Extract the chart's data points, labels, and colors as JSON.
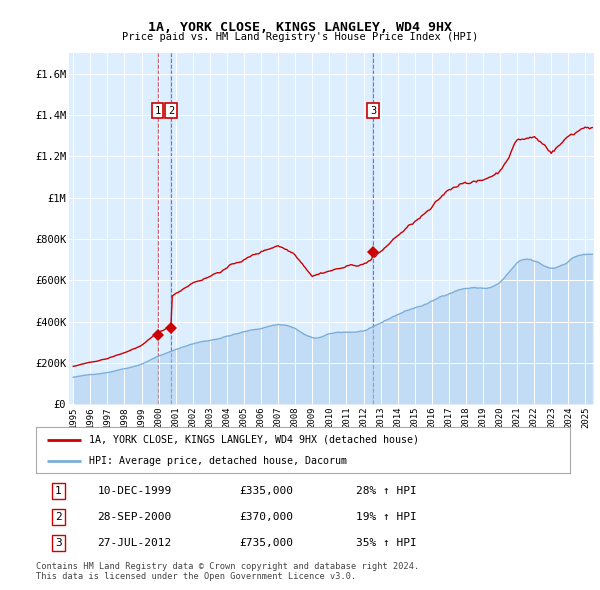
{
  "title": "1A, YORK CLOSE, KINGS LANGLEY, WD4 9HX",
  "subtitle": "Price paid vs. HM Land Registry's House Price Index (HPI)",
  "ylim": [
    0,
    1700000
  ],
  "xlim_start": 1994.75,
  "xlim_end": 2025.5,
  "yticks": [
    0,
    200000,
    400000,
    600000,
    800000,
    1000000,
    1200000,
    1400000,
    1600000
  ],
  "ytick_labels": [
    "£0",
    "£200K",
    "£400K",
    "£600K",
    "£800K",
    "£1M",
    "£1.2M",
    "£1.4M",
    "£1.6M"
  ],
  "xticks": [
    1995,
    1996,
    1997,
    1998,
    1999,
    2000,
    2001,
    2002,
    2003,
    2004,
    2005,
    2006,
    2007,
    2008,
    2009,
    2010,
    2011,
    2012,
    2013,
    2014,
    2015,
    2016,
    2017,
    2018,
    2019,
    2020,
    2021,
    2022,
    2023,
    2024,
    2025
  ],
  "background_color": "#ffffff",
  "plot_bg_color": "#ddeeff",
  "grid_color": "#ffffff",
  "sale_events": [
    {
      "num": 1,
      "year": 1999.94,
      "price": 335000,
      "date": "10-DEC-1999"
    },
    {
      "num": 2,
      "year": 2000.73,
      "price": 370000,
      "date": "28-SEP-2000"
    },
    {
      "num": 3,
      "year": 2012.56,
      "price": 735000,
      "date": "27-JUL-2012"
    }
  ],
  "red_line_color": "#cc0000",
  "blue_line_color": "#7aaed6",
  "legend_label_red": "1A, YORK CLOSE, KINGS LANGLEY, WD4 9HX (detached house)",
  "legend_label_blue": "HPI: Average price, detached house, Dacorum",
  "footer_text": "Contains HM Land Registry data © Crown copyright and database right 2024.\nThis data is licensed under the Open Government Licence v3.0.",
  "sale_rows": [
    [
      "1",
      "10-DEC-1999",
      "£335,000",
      "28% ↑ HPI"
    ],
    [
      "2",
      "28-SEP-2000",
      "£370,000",
      "19% ↑ HPI"
    ],
    [
      "3",
      "27-JUL-2012",
      "£735,000",
      "35% ↑ HPI"
    ]
  ]
}
